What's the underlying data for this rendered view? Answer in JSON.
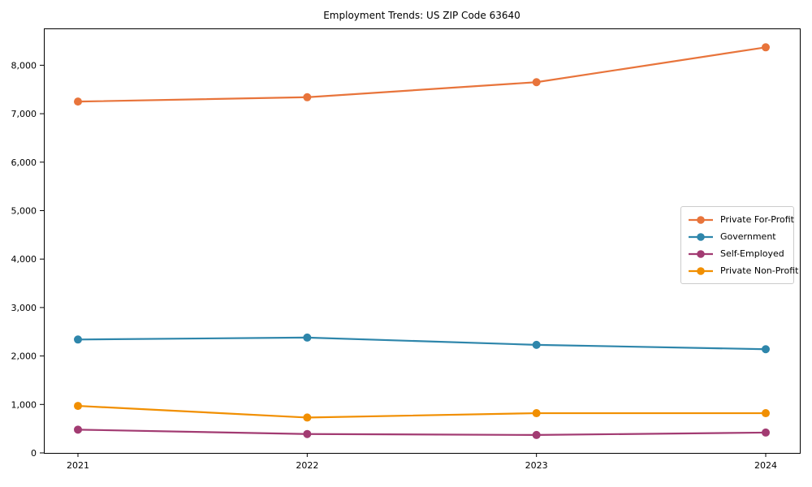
{
  "page": {
    "background_color": "#ffffff"
  },
  "chart_data": {
    "type": "line",
    "title": "Employment Trends: US ZIP Code 63640",
    "xlabel": "",
    "ylabel": "",
    "categories": [
      "2021",
      "2022",
      "2023",
      "2024"
    ],
    "series": [
      {
        "name": "Private For-Profit",
        "color": "#E8743B",
        "values": [
          7250,
          7340,
          7650,
          8370
        ]
      },
      {
        "name": "Government",
        "color": "#2E86AB",
        "values": [
          2340,
          2380,
          2230,
          2140
        ]
      },
      {
        "name": "Self-Employed",
        "color": "#A23B72",
        "values": [
          480,
          390,
          370,
          420
        ]
      },
      {
        "name": "Private Non-Profit",
        "color": "#F18F01",
        "values": [
          970,
          730,
          820,
          820
        ]
      }
    ],
    "ylim": [
      0,
      8760
    ],
    "yticks": [
      0,
      1000,
      2000,
      3000,
      4000,
      5000,
      6000,
      7000,
      8000
    ],
    "ytick_labels": [
      "0",
      "1,000",
      "2,000",
      "3,000",
      "4,000",
      "5,000",
      "6,000",
      "7,000",
      "8,000"
    ],
    "grid": false,
    "legend_position": "center-right",
    "marker": "circle"
  }
}
